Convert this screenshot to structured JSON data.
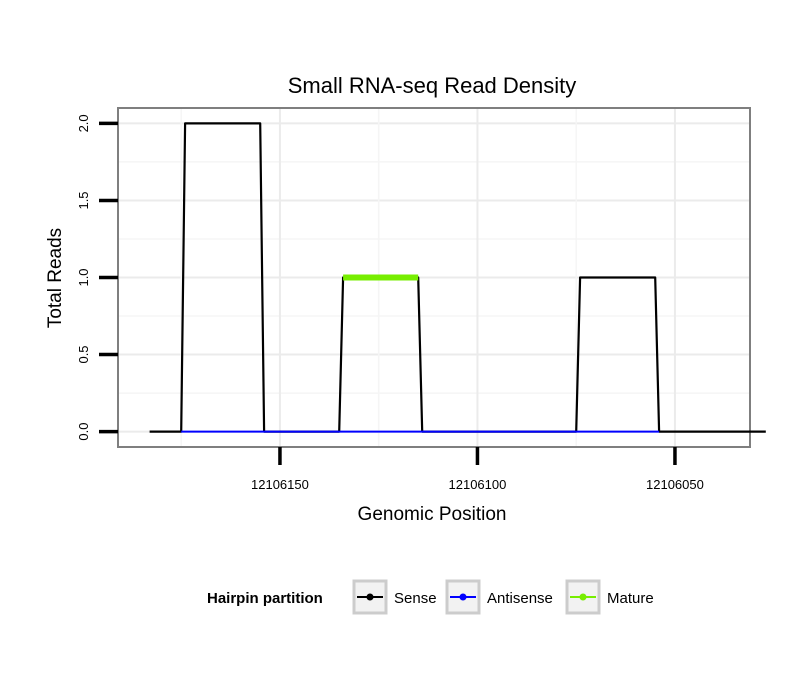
{
  "chart_data": {
    "type": "line",
    "title": "Small RNA-seq Read Density",
    "xlabel": "Genomic Position",
    "ylabel": "Total Reads",
    "x_reversed": true,
    "xlim": [
      12106191,
      12106031
    ],
    "ylim": [
      -0.1,
      2.1
    ],
    "xticks": [
      12106150,
      12106100,
      12106050
    ],
    "xtick_labels": [
      "12106150",
      "12106100",
      "12106050"
    ],
    "yticks": [
      0,
      0.5,
      1,
      1.5,
      2
    ],
    "ytick_labels": [
      "0.0",
      "0.5",
      "1.0",
      "1.5",
      "2.0"
    ],
    "grid": true,
    "legend": {
      "title": "Hairpin partition",
      "position": "bottom",
      "entries": [
        "Sense",
        "Antisense",
        "Mature"
      ]
    },
    "series": [
      {
        "name": "Sense",
        "color": "#000000",
        "x": [
          12106183,
          12106175,
          12106174,
          12106155,
          12106154,
          12106135,
          12106134,
          12106115,
          12106114,
          12106075,
          12106074,
          12106055,
          12106054,
          12106027
        ],
        "y": [
          0,
          0,
          2,
          2,
          0,
          0,
          1,
          1,
          0,
          0,
          1,
          1,
          0,
          0
        ]
      },
      {
        "name": "Antisense",
        "color": "#0000ff",
        "x": [
          12106175,
          12106154,
          12106135,
          12106114,
          12106075,
          12106054
        ],
        "y": [
          0,
          0,
          0,
          0,
          0,
          0
        ]
      },
      {
        "name": "Mature",
        "color": "#77ee00",
        "x": [
          12106134,
          12106115
        ],
        "y": [
          1,
          1
        ]
      }
    ]
  }
}
